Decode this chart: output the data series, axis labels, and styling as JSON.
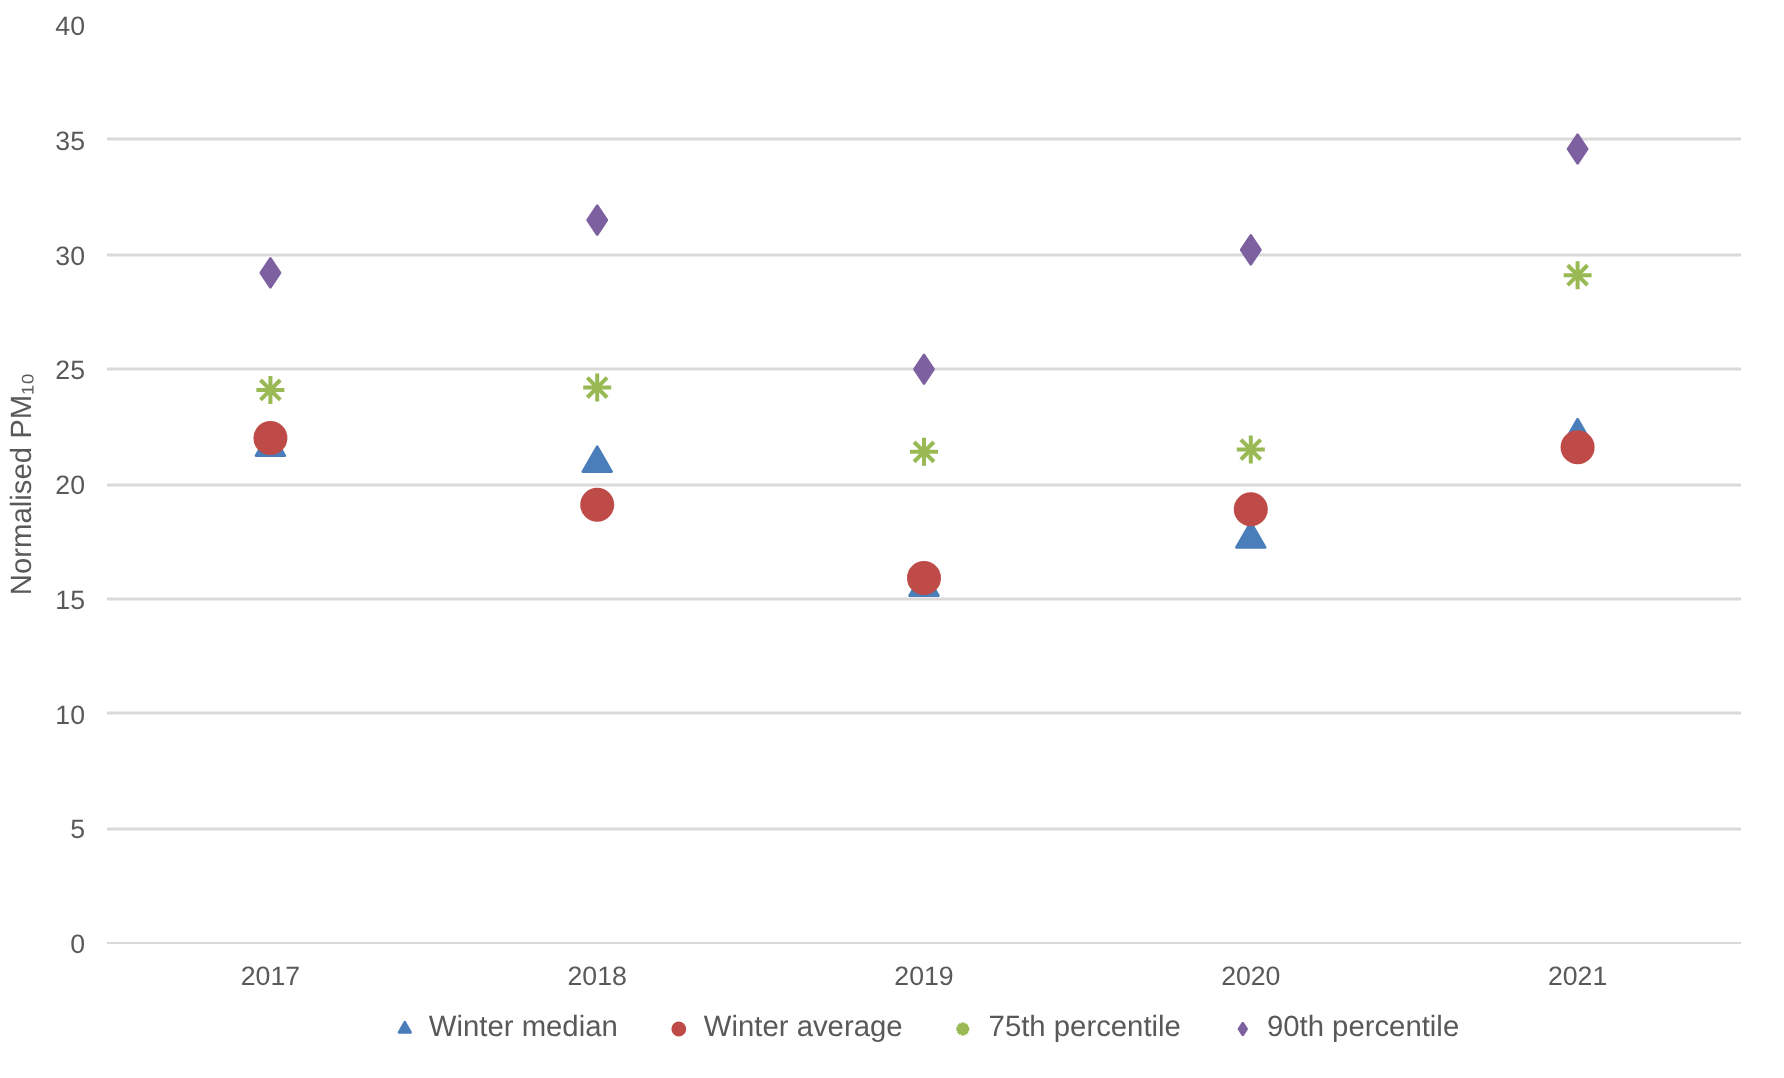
{
  "chart_data": {
    "type": "scatter",
    "ylabel": "Normalised PM₁₀",
    "categories": [
      "2017",
      "2018",
      "2019",
      "2020",
      "2021"
    ],
    "ylim": [
      0,
      40
    ],
    "yticks": [
      0,
      5,
      10,
      15,
      20,
      25,
      30,
      35,
      40
    ],
    "grid": "y",
    "legend": "bottom",
    "series": [
      {
        "name": "Winter median",
        "color": "#4a7ebb",
        "marker": "triangle",
        "values": [
          21.6,
          20.9,
          15.5,
          17.6,
          22.1
        ]
      },
      {
        "name": "Winter average",
        "color": "#be4b48",
        "marker": "circle",
        "values": [
          22.0,
          19.1,
          15.9,
          18.9,
          21.6
        ]
      },
      {
        "name": "75th percentile",
        "color": "#98b954",
        "marker": "cross",
        "values": [
          24.1,
          24.2,
          21.4,
          21.5,
          29.1
        ]
      },
      {
        "name": "90th percentile",
        "color": "#7d60a0",
        "marker": "diamond",
        "values": [
          29.2,
          31.5,
          25.0,
          30.2,
          34.6
        ]
      }
    ]
  }
}
